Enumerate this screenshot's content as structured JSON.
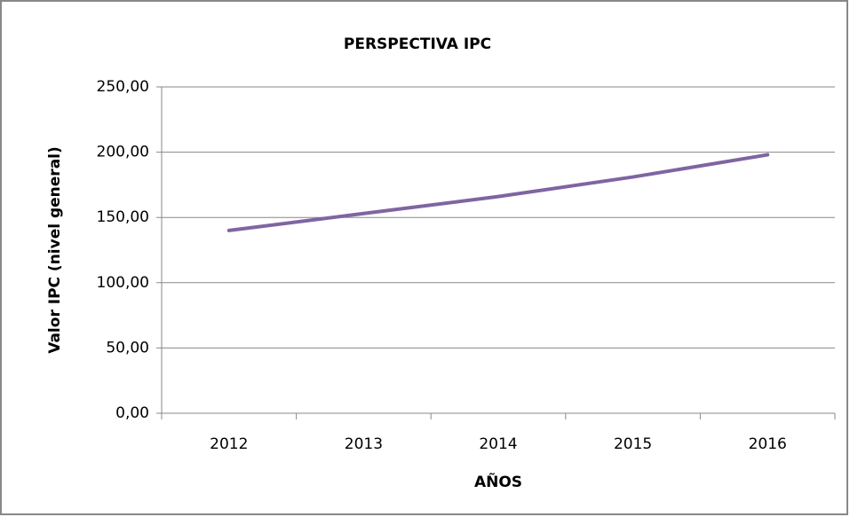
{
  "chart_data": {
    "type": "line",
    "title": "PERSPECTIVA IPC",
    "x_label": "AÑOS",
    "y_label": "Valor IPC (nivel general)",
    "categories": [
      "2012",
      "2013",
      "2014",
      "2015",
      "2016"
    ],
    "series": [
      {
        "name": "IPC",
        "color": "#8064a2",
        "values": [
          140,
          153,
          166,
          181,
          198
        ]
      }
    ],
    "ylim": [
      0,
      250
    ],
    "yticks": [
      {
        "value": 0,
        "label": "0,00"
      },
      {
        "value": 50,
        "label": "50,00"
      },
      {
        "value": 100,
        "label": "100,00"
      },
      {
        "value": 150,
        "label": "150,00"
      },
      {
        "value": 200,
        "label": "200,00"
      },
      {
        "value": 250,
        "label": "250,00"
      }
    ],
    "grid": true
  }
}
